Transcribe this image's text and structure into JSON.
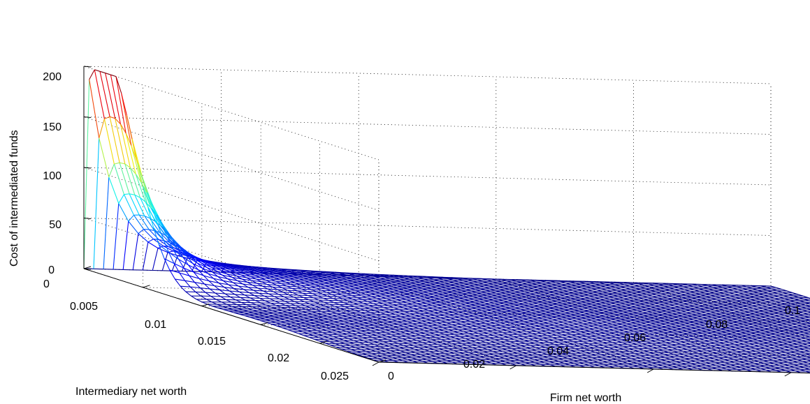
{
  "chart_data": {
    "type": "surface",
    "title": "",
    "xlabel": "Firm net worth",
    "ylabel": "Intermediary net worth",
    "zlabel": "Cost of intermediated funds",
    "x_ticks": [
      "0",
      "0.02",
      "0.04",
      "0.06",
      "0.08",
      "0.1"
    ],
    "y_ticks": [
      "0",
      "0.005",
      "0.01",
      "0.015",
      "0.02",
      "0.025"
    ],
    "z_ticks": [
      "0",
      "50",
      "100",
      "150",
      "200"
    ],
    "xlim": [
      0,
      0.1
    ],
    "ylim": [
      0,
      0.025
    ],
    "zlim": [
      0,
      200
    ],
    "grid": true,
    "colormap": "jet",
    "surface_description": "Cost of intermediated funds over a grid of firm and intermediary net worth; peaks near 190 at the lowest firm net worth and low intermediary net worth, decaying quickly to near zero as firm net worth rises",
    "key_points": [
      {
        "x": 0.0,
        "y": 0.0,
        "z": 0
      },
      {
        "x": 0.002,
        "y": 0.002,
        "z": 190
      },
      {
        "x": 0.005,
        "y": 0.003,
        "z": 130
      },
      {
        "x": 0.01,
        "y": 0.004,
        "z": 75
      },
      {
        "x": 0.02,
        "y": 0.005,
        "z": 35
      },
      {
        "x": 0.04,
        "y": 0.006,
        "z": 15
      },
      {
        "x": 0.1,
        "y": 0.0,
        "z": 5
      },
      {
        "x": 0.1,
        "y": 0.025,
        "z": 0
      }
    ]
  }
}
